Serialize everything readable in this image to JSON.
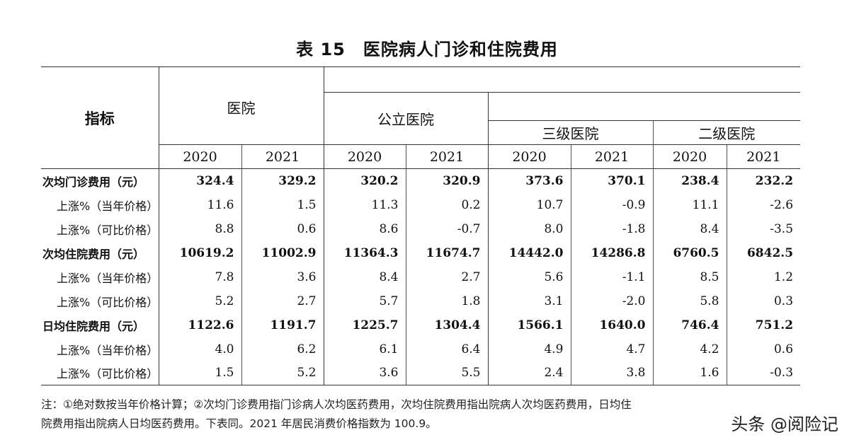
{
  "title": "表 15　医院病人门诊和住院费用",
  "header": {
    "indicator": "指标",
    "hospital": "医院",
    "public_hospital": "公立医院",
    "tertiary": "三级医院",
    "secondary": "二级医院",
    "years": [
      "2020",
      "2021",
      "2020",
      "2021",
      "2020",
      "2021",
      "2020",
      "2021"
    ]
  },
  "rows": [
    {
      "label": "次均门诊费用（元）",
      "bold": true,
      "values": [
        "324.4",
        "329.2",
        "320.2",
        "320.9",
        "373.6",
        "370.1",
        "238.4",
        "232.2"
      ]
    },
    {
      "label": "上涨%（当年价格）",
      "bold": false,
      "values": [
        "11.6",
        "1.5",
        "11.3",
        "0.2",
        "10.7",
        "-0.9",
        "11.1",
        "-2.6"
      ]
    },
    {
      "label": "上涨%（可比价格）",
      "bold": false,
      "values": [
        "8.8",
        "0.6",
        "8.6",
        "-0.7",
        "8.0",
        "-1.8",
        "8.4",
        "-3.5"
      ]
    },
    {
      "label": "次均住院费用（元）",
      "bold": true,
      "values": [
        "10619.2",
        "11002.9",
        "11364.3",
        "11674.7",
        "14442.0",
        "14286.8",
        "6760.5",
        "6842.5"
      ]
    },
    {
      "label": "上涨%（当年价格）",
      "bold": false,
      "values": [
        "7.8",
        "3.6",
        "8.4",
        "2.7",
        "5.6",
        "-1.1",
        "8.5",
        "1.2"
      ]
    },
    {
      "label": "上涨%（可比价格）",
      "bold": false,
      "values": [
        "5.2",
        "2.7",
        "5.7",
        "1.8",
        "3.1",
        "-2.0",
        "5.8",
        "0.3"
      ]
    },
    {
      "label": "日均住院费用（元）",
      "bold": true,
      "values": [
        "1122.6",
        "1191.7",
        "1225.7",
        "1304.4",
        "1566.1",
        "1640.0",
        "746.4",
        "751.2"
      ]
    },
    {
      "label": "上涨%（当年价格）",
      "bold": false,
      "values": [
        "4.0",
        "6.2",
        "6.1",
        "6.4",
        "4.9",
        "4.7",
        "4.2",
        "0.6"
      ]
    },
    {
      "label": "上涨%（可比价格）",
      "bold": false,
      "values": [
        "1.5",
        "5.2",
        "3.6",
        "5.5",
        "2.4",
        "3.8",
        "1.6",
        "-0.3"
      ]
    }
  ],
  "note_line1": "注：①绝对数按当年价格计算；②次均门诊费用指门诊病人次均医药费用，次均住院费用指出院病人次均医药费用，日均住",
  "note_line2": "院费用指出院病人日均医药费用。下表同。2021 年居民消费价格指数为 100.9。",
  "watermark": "头条 @阅险记"
}
